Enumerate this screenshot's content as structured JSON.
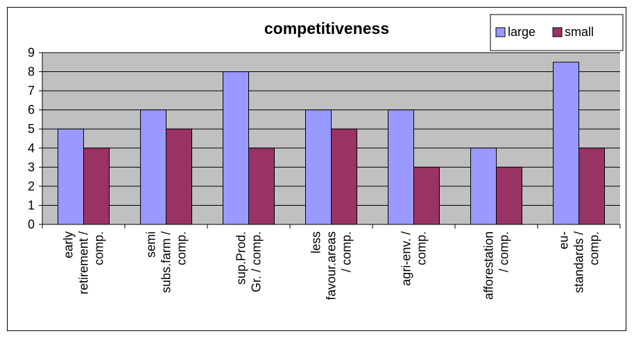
{
  "colors": {
    "plot_background": "#c0c0c0",
    "large": "#9999ff",
    "small": "#993366",
    "gridline": "#000000"
  },
  "chart_data": {
    "type": "bar",
    "title": "competitiveness",
    "xlabel": "",
    "ylabel": "",
    "ylim": [
      0,
      9
    ],
    "yticks": [
      0,
      1,
      2,
      3,
      4,
      5,
      6,
      7,
      8,
      9
    ],
    "grid": true,
    "legend_position": "top-right",
    "categories": [
      [
        "early",
        "retirement /",
        "comp."
      ],
      [
        "semi",
        "subs.farm /",
        "comp."
      ],
      [
        "sup.Prod.",
        "Gr. / comp."
      ],
      [
        "less",
        "favour.areas",
        "/ comp."
      ],
      [
        "agri-env. /",
        "comp."
      ],
      [
        "afforestation",
        "/ comp."
      ],
      [
        "eu-",
        "standards /",
        "comp."
      ]
    ],
    "series": [
      {
        "name": "large",
        "color": "#9999ff",
        "values": [
          5,
          6,
          8,
          6,
          6,
          4,
          8.5
        ]
      },
      {
        "name": "small",
        "color": "#993366",
        "values": [
          4,
          5,
          4,
          5,
          3,
          3,
          4
        ]
      }
    ]
  }
}
